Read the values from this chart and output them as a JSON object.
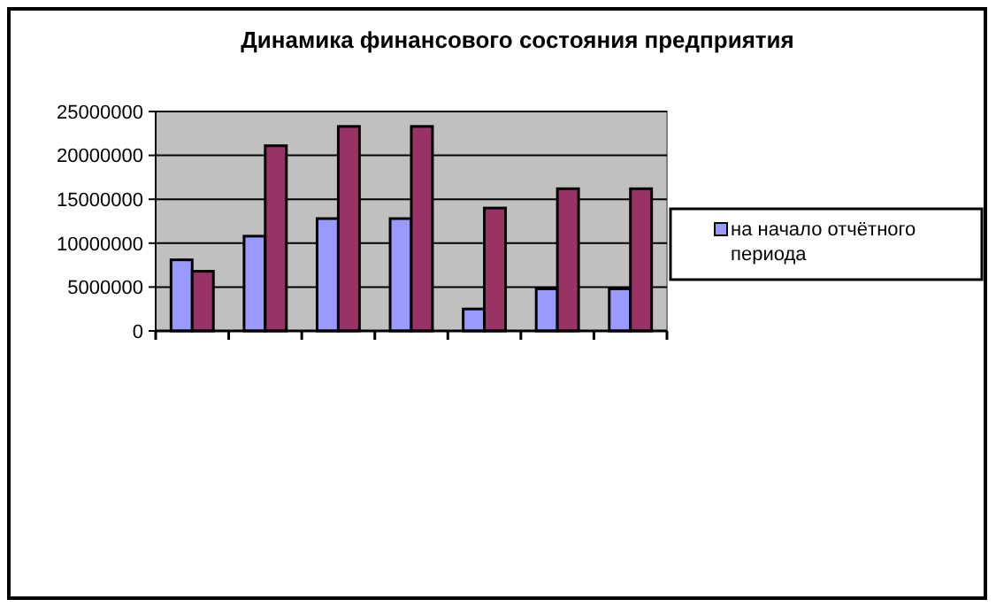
{
  "chart_data": {
    "type": "bar",
    "title": "Динамика финансового  состояния  предприятия",
    "categories": [
      null,
      null,
      null,
      null,
      null,
      null,
      null
    ],
    "series": [
      {
        "name": "на начало отчётного периода",
        "color": "#9999ff",
        "values": [
          8100000,
          10800000,
          12800000,
          12800000,
          2500000,
          4800000,
          4800000
        ]
      },
      {
        "color": "#993366",
        "values": [
          6800000,
          21100000,
          23300000,
          23300000,
          14000000,
          16200000,
          16200000
        ]
      }
    ],
    "ylim": [
      0,
      25000000
    ],
    "yticks": [
      0,
      5000000,
      10000000,
      15000000,
      20000000,
      25000000
    ],
    "grid": "y",
    "legend": "right"
  }
}
